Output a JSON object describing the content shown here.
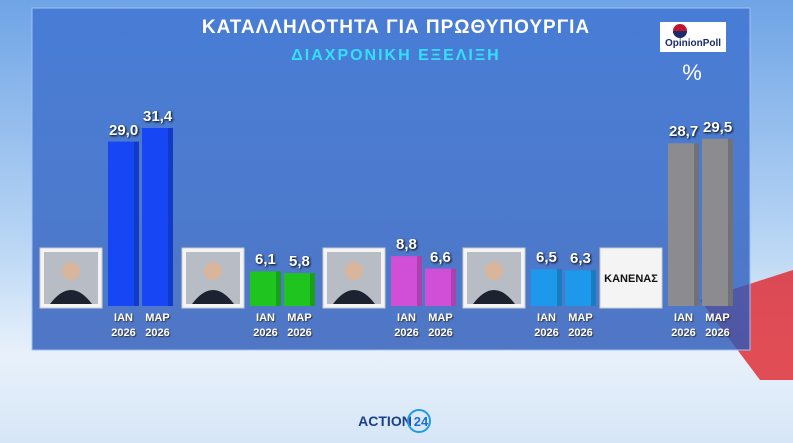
{
  "chart_data": {
    "type": "bar",
    "title": "ΚΑΤΑΛΛΗΛΟΤΗΤΑ ΓΙΑ ΠΡΩΘΥΠΟΥΡΓΙΑ",
    "subtitle": "ΔΙΑΧΡΟΝΙΚΗ ΕΞΕΛΙΞΗ",
    "unit": "%",
    "source": "OpinionPoll",
    "footer": {
      "brand": "ACTION",
      "number": "24"
    },
    "categories": [
      "ΙΑΝ 2026",
      "ΜΑΡ 2026"
    ],
    "series": [
      {
        "color": "#1747f5",
        "values": [
          29.0,
          31.4
        ],
        "value_labels": [
          "29,0",
          "31,4"
        ]
      },
      {
        "color": "#1fc41f",
        "values": [
          6.1,
          5.8
        ],
        "value_labels": [
          "6,1",
          "5,8"
        ]
      },
      {
        "color": "#d14fd6",
        "values": [
          8.8,
          6.6
        ],
        "value_labels": [
          "8,8",
          "6,6"
        ]
      },
      {
        "color": "#1e98ea",
        "values": [
          6.5,
          6.3
        ],
        "value_labels": [
          "6,5",
          "6,3"
        ]
      },
      {
        "name": "ΚΑΝΕΝΑΣ",
        "color": "#8c8c90",
        "values": [
          28.7,
          29.5
        ],
        "value_labels": [
          "28,7",
          "29,5"
        ]
      }
    ]
  }
}
